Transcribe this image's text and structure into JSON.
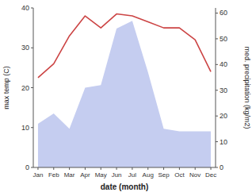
{
  "chart_data": {
    "type": "line",
    "categories": [
      "Jan",
      "Feb",
      "Mar",
      "Apr",
      "May",
      "Jun",
      "Jul",
      "Aug",
      "Sep",
      "Oct",
      "Nov",
      "Dec"
    ],
    "series": [
      {
        "type": "area",
        "axis": "y2",
        "color": "#c5cdf0",
        "values": [
          17,
          21,
          15,
          31,
          32,
          54,
          57,
          37,
          15,
          14,
          14,
          14
        ]
      },
      {
        "type": "line",
        "color": "#cc4444",
        "values": [
          22.5,
          26.0,
          33.0,
          38.0,
          35.0,
          38.5,
          38.0,
          36.5,
          35.0,
          35.0,
          32.0,
          24.0
        ]
      }
    ],
    "xlabel": "date (month)",
    "ylabel": "max temp (C)",
    "y2label": "med. precipitation (kg/m2)",
    "ylim": [
      0,
      40
    ],
    "yticks": [
      0,
      10,
      20,
      30,
      40
    ],
    "y2lim": [
      0,
      62
    ],
    "y2ticks": [
      0,
      10,
      20,
      30,
      40,
      50,
      60
    ],
    "grid": false
  }
}
